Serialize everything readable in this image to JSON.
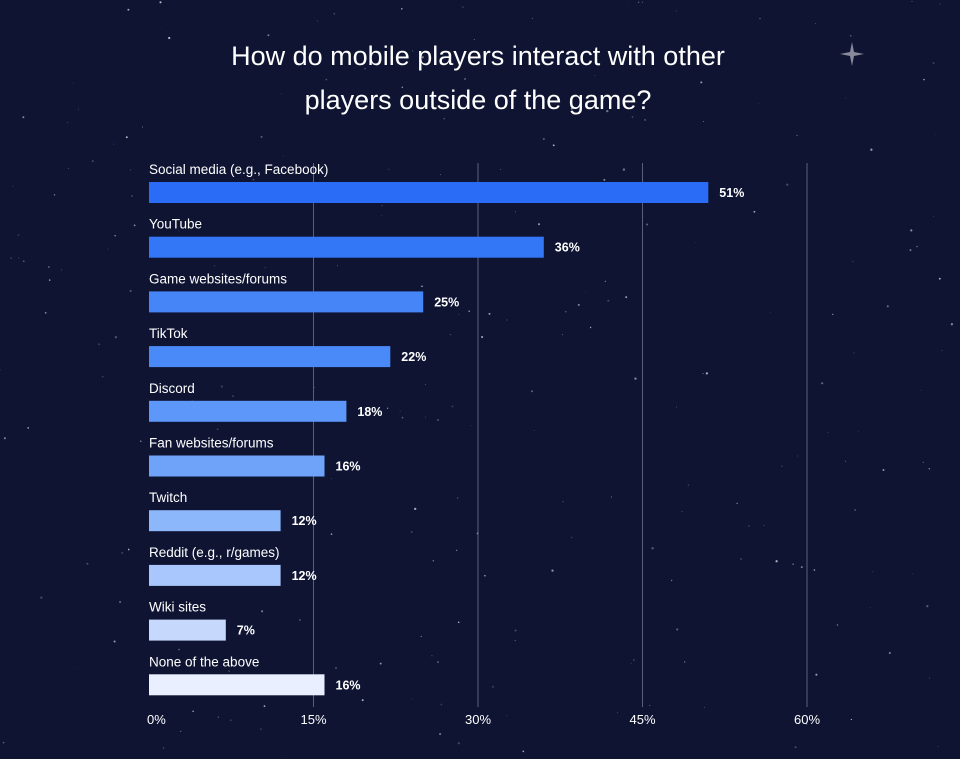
{
  "chart_data": {
    "type": "bar",
    "orientation": "horizontal",
    "title_lines": [
      "How do mobile players interact with other",
      "players outside of the game?"
    ],
    "categories": [
      "Social media (e.g., Facebook)",
      "YouTube",
      "Game websites/forums",
      "TikTok",
      "Discord",
      "Fan websites/forums",
      "Twitch",
      "Reddit (e.g., r/games)",
      "Wiki sites",
      "None of the above"
    ],
    "values": [
      51,
      36,
      25,
      22,
      18,
      16,
      12,
      12,
      7,
      16
    ],
    "value_labels": [
      "51%",
      "36%",
      "25%",
      "22%",
      "18%",
      "16%",
      "12%",
      "12%",
      "7%",
      "16%"
    ],
    "bar_colors": [
      "#2b6cf6",
      "#3377f7",
      "#4585f8",
      "#4a8af8",
      "#5c97f9",
      "#6ea3f9",
      "#8db7fb",
      "#a9c7fc",
      "#c6d9fd",
      "#e9efff"
    ],
    "xlim": [
      0,
      60
    ],
    "xticks": [
      0,
      15,
      30,
      45,
      60
    ],
    "xtick_labels": [
      "0%",
      "15%",
      "30%",
      "45%",
      "60%"
    ],
    "xlabel": "",
    "ylabel": "",
    "grid": true
  },
  "colors": {
    "background": "#0f1433",
    "text": "#ffffff",
    "grid": "#5a5f7d"
  }
}
